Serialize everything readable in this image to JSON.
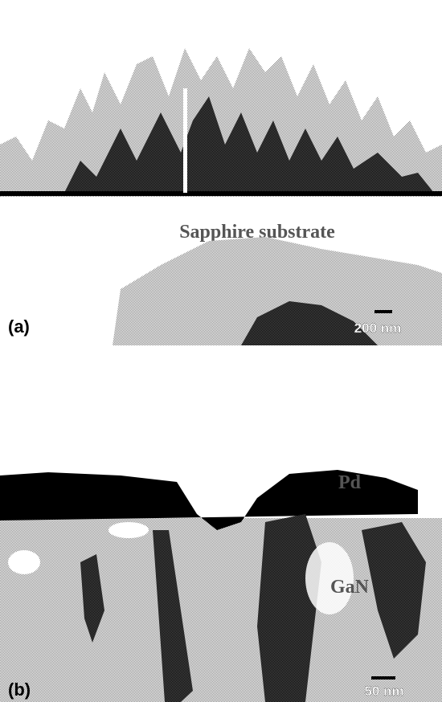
{
  "panels": [
    {
      "label": "(a)",
      "annotations": [
        "Sapphire substrate"
      ],
      "scale": "200 nm"
    },
    {
      "label": "(b)",
      "annotations": [
        "Pd",
        "GaN"
      ],
      "scale": "50 nm"
    }
  ]
}
